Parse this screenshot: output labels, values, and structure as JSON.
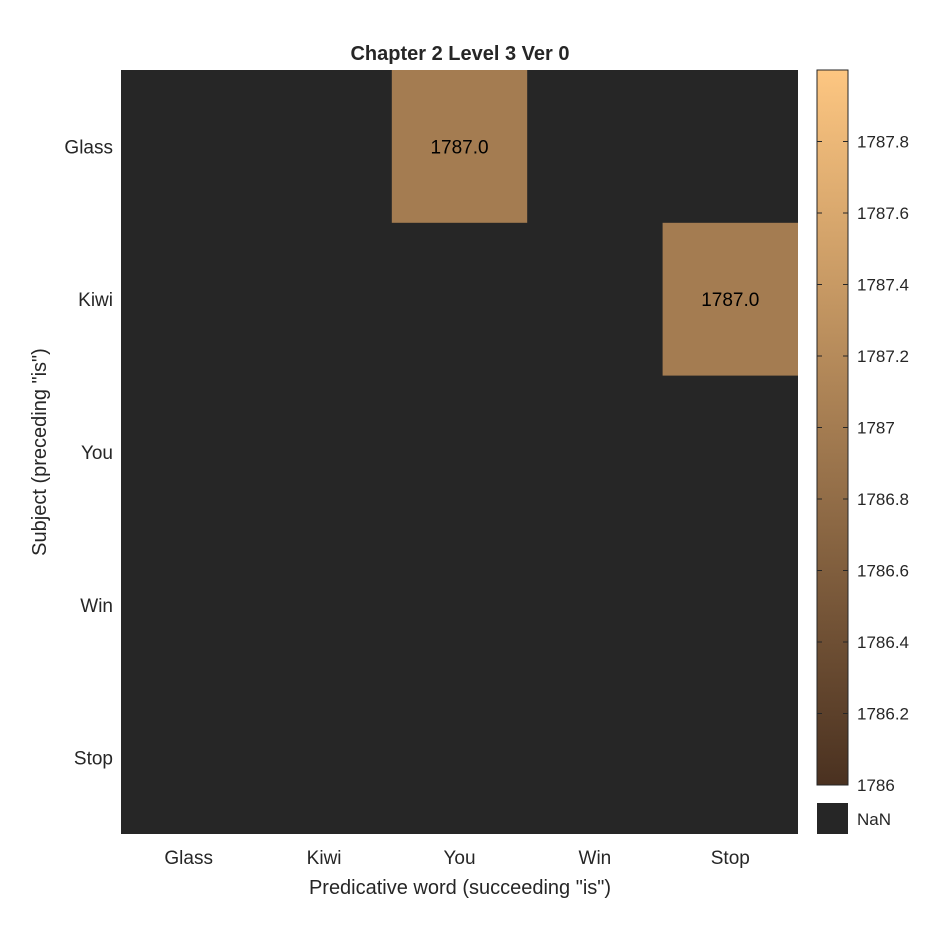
{
  "chart_data": {
    "type": "heatmap",
    "title": "Chapter 2 Level 3 Ver 0",
    "xlabel": "Predicative word (succeeding \"is\")",
    "ylabel": "Subject (preceding \"is\")",
    "x_categories": [
      "Glass",
      "Kiwi",
      "You",
      "Win",
      "Stop"
    ],
    "y_categories": [
      "Glass",
      "Kiwi",
      "You",
      "Win",
      "Stop"
    ],
    "values": [
      [
        null,
        null,
        1787.0,
        null,
        null
      ],
      [
        null,
        null,
        null,
        null,
        1787.0
      ],
      [
        null,
        null,
        null,
        null,
        null
      ],
      [
        null,
        null,
        null,
        null,
        null
      ],
      [
        null,
        null,
        null,
        null,
        null
      ]
    ],
    "cell_labels": [
      [
        null,
        null,
        "1787.0",
        null,
        null
      ],
      [
        null,
        null,
        null,
        null,
        "1787.0"
      ],
      [
        null,
        null,
        null,
        null,
        null
      ],
      [
        null,
        null,
        null,
        null,
        null
      ],
      [
        null,
        null,
        null,
        null,
        null
      ]
    ],
    "colorbar": {
      "min": 1786,
      "max": 1788,
      "ticks": [
        1786,
        1786.2,
        1786.4,
        1786.6,
        1786.8,
        1787,
        1787.2,
        1787.4,
        1787.6,
        1787.8
      ],
      "tick_labels": [
        "1786",
        "1786.2",
        "1786.4",
        "1786.6",
        "1786.8",
        "1787",
        "1787.2",
        "1787.4",
        "1787.6",
        "1787.8"
      ],
      "color_low": "#4a3120",
      "color_high": "#fdc681",
      "nan_label": "NaN",
      "nan_color": "#262626"
    },
    "background_color": "#262626",
    "grid": false
  }
}
